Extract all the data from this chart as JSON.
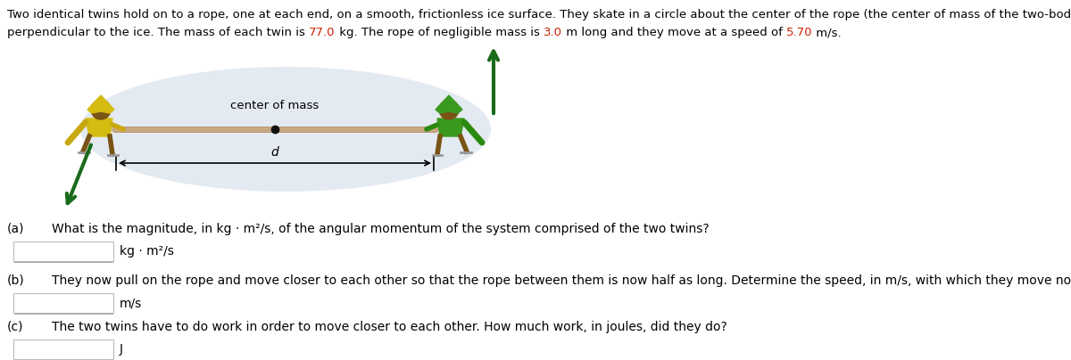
{
  "intro_line1": "Two identical twins hold on to a rope, one at each end, on a smooth, frictionless ice surface. They skate in a circle about the center of the rope (the center of mass of the two-body system) and",
  "intro_line2_parts": [
    [
      "perpendicular to the ice. The mass of each twin is ",
      "#000000"
    ],
    [
      "77.0",
      "#cc2200"
    ],
    [
      " kg. The rope of negligible mass is ",
      "#000000"
    ],
    [
      "3.0",
      "#cc2200"
    ],
    [
      " m long and they move at a speed of ",
      "#000000"
    ],
    [
      "5.70",
      "#cc2200"
    ],
    [
      " m/s.",
      "#000000"
    ]
  ],
  "center_of_mass_label": "center of mass",
  "d_label": "d",
  "q_a_label": "(a)",
  "q_a_text": "What is the magnitude, in kg · m²/s, of the angular momentum of the system comprised of the two twins?",
  "q_a_unit": "kg · m²/s",
  "q_b_label": "(b)",
  "q_b_text": "They now pull on the rope and move closer to each other so that the rope between them is now half as long. Determine the speed, in m/s, with which they move now.",
  "q_b_unit": "m/s",
  "q_c_label": "(c)",
  "q_c_text": "The two twins have to do work in order to move closer to each other. How much work, in joules, did they do?",
  "q_c_unit": "J",
  "bg_color": "#ffffff",
  "text_color": "#000000",
  "rope_color": "#c8a882",
  "arrow_color": "#1a6b1a",
  "diagram_bg": "#dce4ed",
  "box_edge_color": "#bbbbbb"
}
